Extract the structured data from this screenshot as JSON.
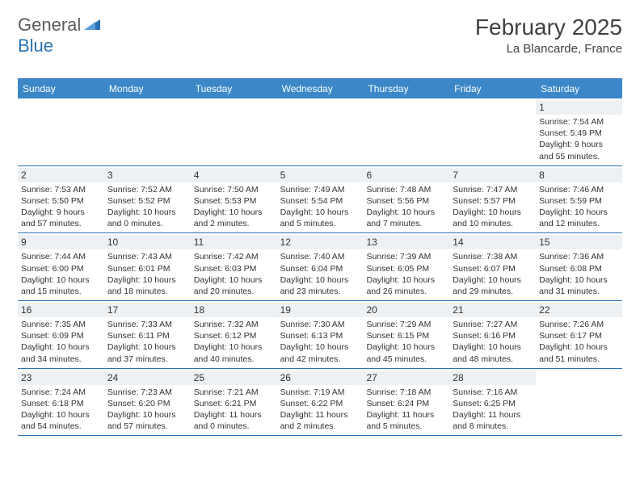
{
  "logo": {
    "text1": "General",
    "text2": "Blue"
  },
  "title": "February 2025",
  "location": "La Blancarde, France",
  "colors": {
    "header_bg": "#3b87c8",
    "border": "#2a72b5",
    "daynum_bg": "#eef1f3",
    "text": "#333333",
    "logo_gray": "#5b5b5b",
    "logo_blue": "#2a72b5"
  },
  "day_headers": [
    "Sunday",
    "Monday",
    "Tuesday",
    "Wednesday",
    "Thursday",
    "Friday",
    "Saturday"
  ],
  "weeks": [
    [
      {
        "num": "",
        "lines": []
      },
      {
        "num": "",
        "lines": []
      },
      {
        "num": "",
        "lines": []
      },
      {
        "num": "",
        "lines": []
      },
      {
        "num": "",
        "lines": []
      },
      {
        "num": "",
        "lines": []
      },
      {
        "num": "1",
        "lines": [
          "Sunrise: 7:54 AM",
          "Sunset: 5:49 PM",
          "Daylight: 9 hours and 55 minutes."
        ]
      }
    ],
    [
      {
        "num": "2",
        "lines": [
          "Sunrise: 7:53 AM",
          "Sunset: 5:50 PM",
          "Daylight: 9 hours and 57 minutes."
        ]
      },
      {
        "num": "3",
        "lines": [
          "Sunrise: 7:52 AM",
          "Sunset: 5:52 PM",
          "Daylight: 10 hours and 0 minutes."
        ]
      },
      {
        "num": "4",
        "lines": [
          "Sunrise: 7:50 AM",
          "Sunset: 5:53 PM",
          "Daylight: 10 hours and 2 minutes."
        ]
      },
      {
        "num": "5",
        "lines": [
          "Sunrise: 7:49 AM",
          "Sunset: 5:54 PM",
          "Daylight: 10 hours and 5 minutes."
        ]
      },
      {
        "num": "6",
        "lines": [
          "Sunrise: 7:48 AM",
          "Sunset: 5:56 PM",
          "Daylight: 10 hours and 7 minutes."
        ]
      },
      {
        "num": "7",
        "lines": [
          "Sunrise: 7:47 AM",
          "Sunset: 5:57 PM",
          "Daylight: 10 hours and 10 minutes."
        ]
      },
      {
        "num": "8",
        "lines": [
          "Sunrise: 7:46 AM",
          "Sunset: 5:59 PM",
          "Daylight: 10 hours and 12 minutes."
        ]
      }
    ],
    [
      {
        "num": "9",
        "lines": [
          "Sunrise: 7:44 AM",
          "Sunset: 6:00 PM",
          "Daylight: 10 hours and 15 minutes."
        ]
      },
      {
        "num": "10",
        "lines": [
          "Sunrise: 7:43 AM",
          "Sunset: 6:01 PM",
          "Daylight: 10 hours and 18 minutes."
        ]
      },
      {
        "num": "11",
        "lines": [
          "Sunrise: 7:42 AM",
          "Sunset: 6:03 PM",
          "Daylight: 10 hours and 20 minutes."
        ]
      },
      {
        "num": "12",
        "lines": [
          "Sunrise: 7:40 AM",
          "Sunset: 6:04 PM",
          "Daylight: 10 hours and 23 minutes."
        ]
      },
      {
        "num": "13",
        "lines": [
          "Sunrise: 7:39 AM",
          "Sunset: 6:05 PM",
          "Daylight: 10 hours and 26 minutes."
        ]
      },
      {
        "num": "14",
        "lines": [
          "Sunrise: 7:38 AM",
          "Sunset: 6:07 PM",
          "Daylight: 10 hours and 29 minutes."
        ]
      },
      {
        "num": "15",
        "lines": [
          "Sunrise: 7:36 AM",
          "Sunset: 6:08 PM",
          "Daylight: 10 hours and 31 minutes."
        ]
      }
    ],
    [
      {
        "num": "16",
        "lines": [
          "Sunrise: 7:35 AM",
          "Sunset: 6:09 PM",
          "Daylight: 10 hours and 34 minutes."
        ]
      },
      {
        "num": "17",
        "lines": [
          "Sunrise: 7:33 AM",
          "Sunset: 6:11 PM",
          "Daylight: 10 hours and 37 minutes."
        ]
      },
      {
        "num": "18",
        "lines": [
          "Sunrise: 7:32 AM",
          "Sunset: 6:12 PM",
          "Daylight: 10 hours and 40 minutes."
        ]
      },
      {
        "num": "19",
        "lines": [
          "Sunrise: 7:30 AM",
          "Sunset: 6:13 PM",
          "Daylight: 10 hours and 42 minutes."
        ]
      },
      {
        "num": "20",
        "lines": [
          "Sunrise: 7:29 AM",
          "Sunset: 6:15 PM",
          "Daylight: 10 hours and 45 minutes."
        ]
      },
      {
        "num": "21",
        "lines": [
          "Sunrise: 7:27 AM",
          "Sunset: 6:16 PM",
          "Daylight: 10 hours and 48 minutes."
        ]
      },
      {
        "num": "22",
        "lines": [
          "Sunrise: 7:26 AM",
          "Sunset: 6:17 PM",
          "Daylight: 10 hours and 51 minutes."
        ]
      }
    ],
    [
      {
        "num": "23",
        "lines": [
          "Sunrise: 7:24 AM",
          "Sunset: 6:18 PM",
          "Daylight: 10 hours and 54 minutes."
        ]
      },
      {
        "num": "24",
        "lines": [
          "Sunrise: 7:23 AM",
          "Sunset: 6:20 PM",
          "Daylight: 10 hours and 57 minutes."
        ]
      },
      {
        "num": "25",
        "lines": [
          "Sunrise: 7:21 AM",
          "Sunset: 6:21 PM",
          "Daylight: 11 hours and 0 minutes."
        ]
      },
      {
        "num": "26",
        "lines": [
          "Sunrise: 7:19 AM",
          "Sunset: 6:22 PM",
          "Daylight: 11 hours and 2 minutes."
        ]
      },
      {
        "num": "27",
        "lines": [
          "Sunrise: 7:18 AM",
          "Sunset: 6:24 PM",
          "Daylight: 11 hours and 5 minutes."
        ]
      },
      {
        "num": "28",
        "lines": [
          "Sunrise: 7:16 AM",
          "Sunset: 6:25 PM",
          "Daylight: 11 hours and 8 minutes."
        ]
      },
      {
        "num": "",
        "lines": []
      }
    ]
  ]
}
